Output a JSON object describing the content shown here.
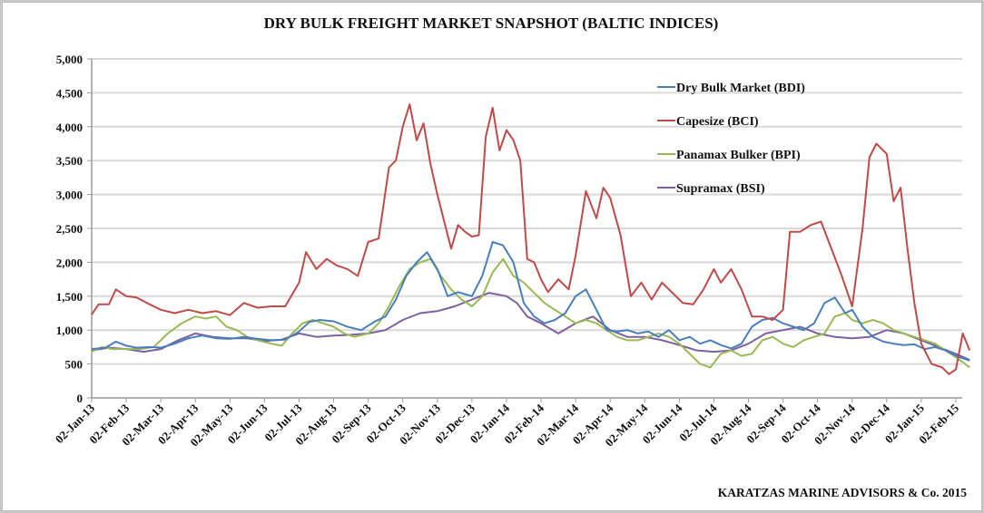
{
  "chart_data": {
    "type": "line",
    "title": "DRY BULK FREIGHT MARKET SNAPSHOT (BALTIC INDICES)",
    "xlabel": "",
    "ylabel": "",
    "ylim": [
      0,
      5000
    ],
    "yticks": [
      "0",
      "500",
      "1,000",
      "1,500",
      "2,000",
      "2,500",
      "3,000",
      "3,500",
      "4,000",
      "4,500",
      "5,000"
    ],
    "ytick_values": [
      0,
      500,
      1000,
      1500,
      2000,
      2500,
      3000,
      3500,
      4000,
      4500,
      5000
    ],
    "xticks": [
      "02-Jan-13",
      "02-Feb-13",
      "02-Mar-13",
      "02-Apr-13",
      "02-May-13",
      "02-Jun-13",
      "02-Jul-13",
      "02-Aug-13",
      "02-Sep-13",
      "02-Oct-13",
      "02-Nov-13",
      "02-Dec-13",
      "02-Jan-14",
      "02-Feb-14",
      "02-Mar-14",
      "02-Apr-14",
      "02-May-14",
      "02-Jun-14",
      "02-Jul-14",
      "02-Aug-14",
      "02-Sep-14",
      "02-Oct-14",
      "02-Nov-14",
      "02-Dec-14",
      "02-Jan-15",
      "02-Feb-15"
    ],
    "x_unit": "months since 02-Jan-13",
    "xlim": [
      0,
      25.4
    ],
    "grid": true,
    "legend_position": "top-right",
    "series": [
      {
        "name": "Dry Bulk Market (BDI)",
        "color": "#4a7ebb",
        "x": [
          0,
          0.4,
          0.7,
          1.0,
          1.3,
          1.7,
          2.0,
          2.4,
          2.8,
          3.2,
          3.6,
          4.0,
          4.4,
          4.8,
          5.2,
          5.6,
          6.0,
          6.3,
          6.6,
          7.0,
          7.4,
          7.8,
          8.2,
          8.5,
          8.8,
          9.1,
          9.4,
          9.7,
          10.0,
          10.3,
          10.6,
          11.0,
          11.3,
          11.6,
          11.9,
          12.2,
          12.5,
          12.8,
          13.1,
          13.4,
          13.7,
          14.0,
          14.3,
          14.6,
          14.9,
          15.2,
          15.5,
          15.8,
          16.1,
          16.4,
          16.7,
          17.0,
          17.3,
          17.6,
          17.9,
          18.2,
          18.5,
          18.8,
          19.1,
          19.4,
          19.7,
          20.0,
          20.3,
          20.6,
          20.9,
          21.2,
          21.5,
          21.8,
          22.0,
          22.3,
          22.6,
          22.9,
          23.2,
          23.5,
          23.8,
          24.1,
          24.4,
          24.7,
          25.0,
          25.4
        ],
        "values": [
          720,
          740,
          830,
          770,
          740,
          750,
          740,
          800,
          880,
          920,
          880,
          870,
          900,
          870,
          850,
          860,
          980,
          1120,
          1150,
          1130,
          1050,
          1000,
          1130,
          1200,
          1450,
          1800,
          2000,
          2150,
          1900,
          1500,
          1560,
          1500,
          1800,
          2300,
          2250,
          2000,
          1400,
          1200,
          1100,
          1150,
          1250,
          1500,
          1600,
          1300,
          1000,
          980,
          1000,
          950,
          980,
          900,
          1000,
          850,
          900,
          800,
          850,
          780,
          730,
          800,
          1050,
          1150,
          1180,
          1100,
          1050,
          1000,
          1100,
          1400,
          1480,
          1250,
          1300,
          1050,
          900,
          830,
          800,
          780,
          790,
          720,
          750,
          700,
          620,
          550
        ]
      },
      {
        "name": "Capesize (BCI)",
        "color": "#be4b48",
        "x": [
          0,
          0.2,
          0.5,
          0.7,
          1.0,
          1.3,
          1.6,
          2.0,
          2.4,
          2.8,
          3.2,
          3.6,
          4.0,
          4.4,
          4.8,
          5.2,
          5.6,
          6.0,
          6.2,
          6.5,
          6.8,
          7.1,
          7.4,
          7.7,
          8.0,
          8.3,
          8.6,
          8.8,
          9.0,
          9.2,
          9.4,
          9.6,
          9.8,
          10.0,
          10.2,
          10.4,
          10.6,
          10.8,
          11.0,
          11.2,
          11.4,
          11.6,
          11.8,
          12.0,
          12.2,
          12.4,
          12.6,
          12.8,
          13.0,
          13.2,
          13.5,
          13.8,
          14.0,
          14.3,
          14.6,
          14.8,
          15.0,
          15.3,
          15.6,
          15.9,
          16.2,
          16.5,
          16.8,
          17.1,
          17.4,
          17.7,
          18.0,
          18.2,
          18.5,
          18.8,
          19.1,
          19.4,
          19.7,
          20.0,
          20.2,
          20.5,
          20.8,
          21.1,
          21.4,
          21.7,
          22.0,
          22.3,
          22.5,
          22.7,
          23.0,
          23.2,
          23.4,
          23.6,
          23.8,
          24.0,
          24.3,
          24.6,
          24.8,
          25.0,
          25.2,
          25.4
        ],
        "values": [
          1230,
          1380,
          1380,
          1600,
          1500,
          1480,
          1400,
          1300,
          1250,
          1300,
          1250,
          1280,
          1220,
          1400,
          1330,
          1350,
          1350,
          1700,
          2150,
          1900,
          2050,
          1950,
          1900,
          1800,
          2300,
          2350,
          3400,
          3500,
          4000,
          4330,
          3800,
          4050,
          3450,
          3000,
          2600,
          2200,
          2550,
          2450,
          2380,
          2400,
          3850,
          4280,
          3650,
          3950,
          3800,
          3500,
          2050,
          2000,
          1750,
          1560,
          1750,
          1600,
          2100,
          3050,
          2650,
          3100,
          2950,
          2400,
          1500,
          1700,
          1450,
          1700,
          1550,
          1400,
          1380,
          1600,
          1900,
          1700,
          1900,
          1600,
          1200,
          1200,
          1150,
          1300,
          2450,
          2450,
          2550,
          2600,
          2200,
          1800,
          1350,
          2500,
          3550,
          3750,
          3600,
          2900,
          3100,
          2200,
          1400,
          800,
          500,
          450,
          350,
          420,
          950,
          700
        ]
      },
      {
        "name": "Panamax Bulker (BPI)",
        "color": "#98b954",
        "x": [
          0,
          0.3,
          0.6,
          1.0,
          1.4,
          1.8,
          2.2,
          2.6,
          3.0,
          3.3,
          3.6,
          3.9,
          4.2,
          4.5,
          4.8,
          5.2,
          5.5,
          5.8,
          6.1,
          6.4,
          6.7,
          7.0,
          7.3,
          7.6,
          8.0,
          8.3,
          8.6,
          8.9,
          9.2,
          9.5,
          9.8,
          10.1,
          10.4,
          10.7,
          11.0,
          11.3,
          11.6,
          11.9,
          12.2,
          12.5,
          12.8,
          13.1,
          13.4,
          13.7,
          14.0,
          14.3,
          14.6,
          14.9,
          15.2,
          15.5,
          15.8,
          16.1,
          16.4,
          16.7,
          17.0,
          17.3,
          17.6,
          17.9,
          18.2,
          18.5,
          18.8,
          19.1,
          19.4,
          19.7,
          20.0,
          20.3,
          20.6,
          20.9,
          21.2,
          21.5,
          21.8,
          22.0,
          22.3,
          22.6,
          22.9,
          23.2,
          23.5,
          23.8,
          24.1,
          24.4,
          24.7,
          25.0,
          25.4
        ],
        "values": [
          680,
          750,
          720,
          720,
          720,
          750,
          950,
          1100,
          1200,
          1170,
          1200,
          1050,
          1000,
          900,
          850,
          800,
          770,
          950,
          1100,
          1150,
          1100,
          1050,
          950,
          900,
          950,
          1100,
          1350,
          1650,
          1900,
          2000,
          2050,
          1800,
          1600,
          1450,
          1350,
          1500,
          1850,
          2050,
          1800,
          1700,
          1550,
          1400,
          1300,
          1200,
          1100,
          1150,
          1100,
          1000,
          900,
          850,
          850,
          900,
          950,
          900,
          800,
          650,
          500,
          450,
          650,
          700,
          620,
          650,
          850,
          900,
          800,
          750,
          850,
          900,
          950,
          1200,
          1250,
          1150,
          1100,
          1150,
          1100,
          1000,
          950,
          900,
          850,
          800,
          700,
          600,
          450
        ]
      },
      {
        "name": "Supramax (BSI)",
        "color": "#7d60a0",
        "x": [
          0,
          0.5,
          1.0,
          1.5,
          2.0,
          2.5,
          3.0,
          3.5,
          4.0,
          4.5,
          5.0,
          5.5,
          6.0,
          6.5,
          7.0,
          7.5,
          8.0,
          8.5,
          9.0,
          9.5,
          10.0,
          10.5,
          11.0,
          11.5,
          12.0,
          12.3,
          12.6,
          13.0,
          13.5,
          14.0,
          14.5,
          15.0,
          15.5,
          16.0,
          16.5,
          17.0,
          17.5,
          18.0,
          18.5,
          19.0,
          19.5,
          20.0,
          20.5,
          21.0,
          21.5,
          22.0,
          22.5,
          23.0,
          23.5,
          24.0,
          24.5,
          25.0,
          25.4
        ],
        "values": [
          700,
          740,
          720,
          680,
          720,
          850,
          950,
          900,
          880,
          880,
          840,
          860,
          950,
          900,
          920,
          930,
          950,
          1000,
          1150,
          1250,
          1280,
          1350,
          1450,
          1550,
          1500,
          1400,
          1200,
          1100,
          950,
          1100,
          1200,
          1000,
          900,
          900,
          850,
          780,
          700,
          680,
          700,
          800,
          950,
          1000,
          1050,
          950,
          900,
          880,
          900,
          1000,
          950,
          850,
          750,
          650,
          560
        ]
      }
    ]
  },
  "footer": {
    "credit": "KARATZAS MARINE ADVISORS & Co. 2015"
  }
}
